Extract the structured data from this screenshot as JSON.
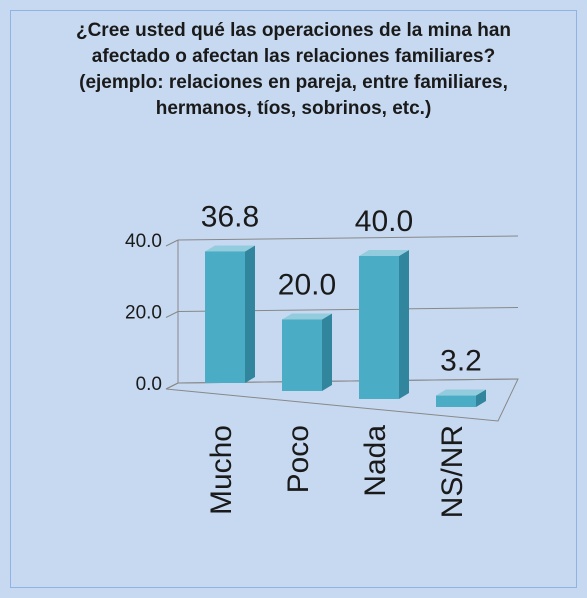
{
  "chart_data": {
    "type": "bar3d",
    "title": "¿Cree usted qué las operaciones de la mina han afectado o afectan las relaciones familiares? (ejemplo: relaciones en pareja, entre familiares, hermanos, tíos, sobrinos, etc.)",
    "categories": [
      "Mucho",
      "Poco",
      "Nada",
      "NS/NR"
    ],
    "values": [
      36.8,
      20.0,
      40.0,
      3.2
    ],
    "value_labels": [
      "36.8",
      "20.0",
      "40.0",
      "3.2"
    ],
    "color": "#4bacc6",
    "ylim": [
      0,
      40
    ],
    "yticks": [
      {
        "value": 0,
        "label": "0.0"
      },
      {
        "value": 20,
        "label": "20.0"
      },
      {
        "value": 40,
        "label": "40.0"
      }
    ],
    "grid": true
  }
}
